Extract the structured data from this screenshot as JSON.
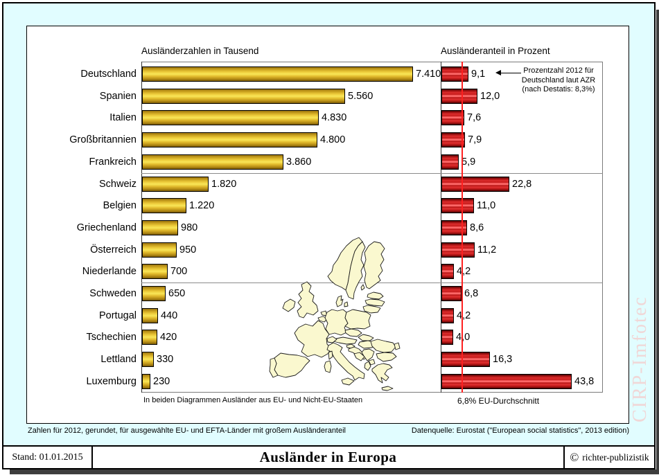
{
  "page": {
    "background_color": "#e1fdff"
  },
  "watermark": "CIRP-Imfotec",
  "left_chart": {
    "title": "Ausländerzahlen in Tausend",
    "note": "In beiden Diagrammen Ausländer aus EU- und Nicht-EU-Staaten"
  },
  "right_chart": {
    "title": "Ausländeranteil in Prozent",
    "note": "6,8% EU-Durchschnitt",
    "eu_average_percent": 6.8
  },
  "annotation": {
    "line1": "Prozentzahl 2012 für",
    "line2": "Deutschland laut AZR",
    "line3": "(nach Destatis: 8,3%)"
  },
  "countries": [
    {
      "name": "Deutschland",
      "thousands": 7410,
      "thousands_label": "7.410",
      "percent": 9.1,
      "percent_label": "9,1"
    },
    {
      "name": "Spanien",
      "thousands": 5560,
      "thousands_label": "5.560",
      "percent": 12.0,
      "percent_label": "12,0"
    },
    {
      "name": "Italien",
      "thousands": 4830,
      "thousands_label": "4.830",
      "percent": 7.6,
      "percent_label": "7,6"
    },
    {
      "name": "Großbritannien",
      "thousands": 4800,
      "thousands_label": "4.800",
      "percent": 7.9,
      "percent_label": "7,9"
    },
    {
      "name": "Frankreich",
      "thousands": 3860,
      "thousands_label": "3.860",
      "percent": 5.9,
      "percent_label": "5,9"
    },
    {
      "name": "Schweiz",
      "thousands": 1820,
      "thousands_label": "1.820",
      "percent": 22.8,
      "percent_label": "22,8"
    },
    {
      "name": "Belgien",
      "thousands": 1220,
      "thousands_label": "1.220",
      "percent": 11.0,
      "percent_label": "11,0"
    },
    {
      "name": "Griechenland",
      "thousands": 980,
      "thousands_label": "980",
      "percent": 8.6,
      "percent_label": "8,6"
    },
    {
      "name": "Österreich",
      "thousands": 950,
      "thousands_label": "950",
      "percent": 11.2,
      "percent_label": "11,2"
    },
    {
      "name": "Niederlande",
      "thousands": 700,
      "thousands_label": "700",
      "percent": 4.2,
      "percent_label": "4,2"
    },
    {
      "name": "Schweden",
      "thousands": 650,
      "thousands_label": "650",
      "percent": 6.8,
      "percent_label": "6,8"
    },
    {
      "name": "Portugal",
      "thousands": 440,
      "thousands_label": "440",
      "percent": 4.2,
      "percent_label": "4,2"
    },
    {
      "name": "Tschechien",
      "thousands": 420,
      "thousands_label": "420",
      "percent": 4.0,
      "percent_label": "4,0"
    },
    {
      "name": "Lettland",
      "thousands": 330,
      "thousands_label": "330",
      "percent": 16.3,
      "percent_label": "16,3"
    },
    {
      "name": "Luxemburg",
      "thousands": 230,
      "thousands_label": "230",
      "percent": 43.8,
      "percent_label": "43,8"
    }
  ],
  "chart_data": {
    "type": "bar",
    "orientation": "horizontal",
    "categories": [
      "Deutschland",
      "Spanien",
      "Italien",
      "Großbritannien",
      "Frankreich",
      "Schweiz",
      "Belgien",
      "Griechenland",
      "Österreich",
      "Niederlande",
      "Schweden",
      "Portugal",
      "Tschechien",
      "Lettland",
      "Luxemburg"
    ],
    "series": [
      {
        "name": "Ausländerzahlen in Tausend",
        "color": "#e8c52e",
        "values": [
          7410,
          5560,
          4830,
          4800,
          3860,
          1820,
          1220,
          980,
          950,
          700,
          650,
          440,
          420,
          330,
          230
        ]
      },
      {
        "name": "Ausländeranteil in Prozent",
        "color": "#d92121",
        "values": [
          9.1,
          12.0,
          7.6,
          7.9,
          5.9,
          22.8,
          11.0,
          8.6,
          11.2,
          4.2,
          6.8,
          4.2,
          4.0,
          16.3,
          43.8
        ]
      }
    ],
    "reference_line": {
      "series": "Ausländeranteil in Prozent",
      "value": 6.8,
      "label": "6,8% EU-Durchschnitt",
      "color": "#ff1f1f"
    },
    "group_dividers_after": [
      4,
      9
    ],
    "annotations": [
      "Prozentzahl 2012 für Deutschland laut AZR (nach Destatis: 8,3%)"
    ],
    "legend": false,
    "grid": false
  },
  "footer": {
    "left": "Zahlen für 2012, gerundet, für ausgewählte EU- und EFTA-Länder mit großem Ausländeranteil",
    "right": "Datenquelle: Eurostat (\"European social statistics\", 2013 edition)"
  },
  "bottom_bar": {
    "stand": "Stand: 01.01.2015",
    "title": "Ausländer in Europa",
    "copyright_symbol": "©",
    "copyright": "richter-publizistik"
  },
  "colors": {
    "bar_yellow": "#e8c52e",
    "bar_red": "#d92121",
    "reference_line": "#ff1f1f",
    "background": "#e1fdff",
    "map_fill": "#faf8cf",
    "watermark_color": "#f0d7d7"
  }
}
